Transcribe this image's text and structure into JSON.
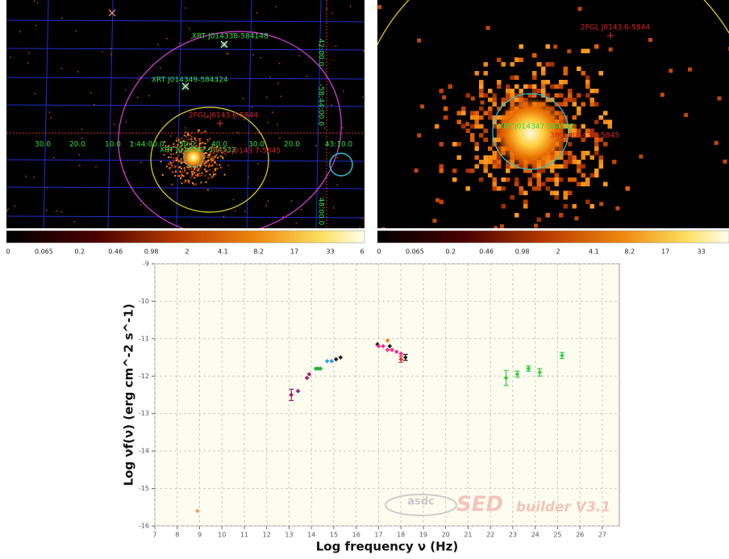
{
  "images": [
    {
      "sources": [
        "XRT J014338-584148",
        "XRT J014349-584324",
        "XRT J014347-584532"
      ],
      "fermi": [
        "2FGL J0143.6-5844",
        "3FGL J0143.7-5845"
      ],
      "ra_labels": [
        "30.0",
        "20.0",
        "10.0",
        "1:44:00.0",
        "50.0",
        "40.0",
        "30.0",
        "20.0",
        "43:10.0"
      ],
      "dec_labels": [
        "42:00.0",
        "-58:44:00.0",
        "48:00.0"
      ],
      "colorbar": [
        "0",
        "0.065",
        "0.2",
        "0.46",
        "0.98",
        "2",
        "4.1",
        "8.2",
        "17",
        "33",
        "6"
      ]
    },
    {
      "sources": [
        "XRT J014347-584532"
      ],
      "fermi": [
        "2FGL J0143.6-5844",
        "3FGL J0143.7-5845"
      ],
      "colorbar": [
        "0",
        "0.065",
        "0.2",
        "0.46",
        "0.98",
        "2",
        "4.1",
        "8.2",
        "17",
        "33"
      ]
    }
  ],
  "chart_data": {
    "type": "scatter",
    "xlabel": "Log frequency ν (Hz)",
    "ylabel": "Log νf(ν) (erg cm^-2 s^-1)",
    "xlim": [
      7,
      27.76
    ],
    "ylim": [
      -16,
      -9
    ],
    "xticks": [
      7,
      8,
      9,
      10,
      11,
      12,
      13,
      14,
      15,
      16,
      17,
      18,
      19,
      20,
      21,
      22,
      23,
      24,
      25,
      26,
      27
    ],
    "yticks": [
      -16,
      -15,
      -14,
      -13,
      -12,
      -11,
      -10,
      -9
    ],
    "grid": true,
    "watermark": [
      "asdc",
      "SED",
      "builder V3.1"
    ],
    "series": [
      {
        "color": "#f0a060",
        "x": [
          8.9
        ],
        "values": [
          -15.6
        ]
      },
      {
        "color": "#a0206a",
        "x": [
          13.1,
          13.4,
          13.8,
          13.9
        ],
        "values": [
          -12.5,
          -12.4,
          -12.05,
          -11.95
        ],
        "errors": [
          0.15,
          null,
          null,
          null
        ]
      },
      {
        "color": "#20b040",
        "x": [
          14.2,
          14.3,
          14.4
        ],
        "values": [
          -11.8,
          -11.8,
          -11.8
        ]
      },
      {
        "color": "#30a0e0",
        "x": [
          14.7,
          14.9
        ],
        "values": [
          -11.6,
          -11.6
        ]
      },
      {
        "color": "#202020",
        "x": [
          15.1,
          15.3,
          16.95,
          17.5,
          18.2
        ],
        "values": [
          -11.55,
          -11.5,
          -11.15,
          -11.2,
          -11.5
        ],
        "errors": [
          null,
          null,
          null,
          null,
          0.08
        ]
      },
      {
        "color": "#ff2a8a",
        "x": [
          17.0,
          17.2,
          17.4,
          17.6,
          17.8,
          18.0
        ],
        "values": [
          -11.2,
          -11.2,
          -11.3,
          -11.3,
          -11.35,
          -11.4
        ]
      },
      {
        "color": "#f08020",
        "x": [
          17.4
        ],
        "values": [
          -11.05
        ]
      },
      {
        "color": "#e03030",
        "x": [
          18.0
        ],
        "values": [
          -11.55
        ],
        "errors": [
          0.08
        ]
      },
      {
        "color": "#30d040",
        "x": [
          22.7,
          23.2,
          23.7,
          24.2,
          25.2
        ],
        "values": [
          -12.05,
          -11.95,
          -11.8,
          -11.9,
          -11.45
        ],
        "errors": [
          0.2,
          0.08,
          0.07,
          0.1,
          0.08
        ]
      }
    ]
  }
}
